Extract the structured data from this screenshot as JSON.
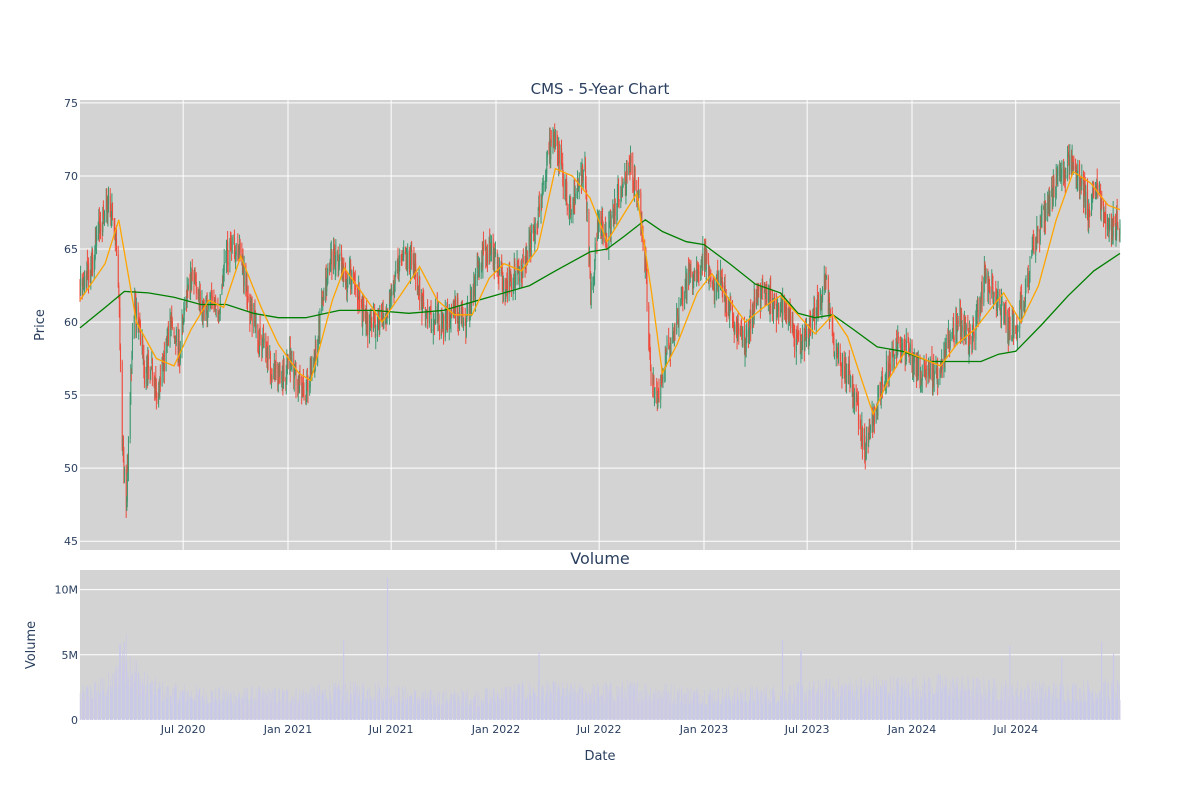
{
  "chart_data": {
    "type": "candlestick",
    "title": "CMS - 5-Year Chart",
    "subplot_titles": [
      "",
      "Volume"
    ],
    "xlabel": "Date",
    "price_panel": {
      "ylabel": "Price",
      "ylim": [
        44.4,
        75.2
      ],
      "yticks": [
        45,
        50,
        55,
        60,
        65,
        70,
        75
      ],
      "background": "#d3d3d3",
      "grid": true
    },
    "volume_panel": {
      "ylabel": "Volume",
      "ylim": [
        0,
        11500000
      ],
      "yticks": [
        0,
        5000000,
        10000000
      ],
      "ytick_labels": [
        "0",
        "5M",
        "10M"
      ],
      "background": "#d3d3d3",
      "bar_color": "#c8c8ea",
      "grid": true
    },
    "x_range": [
      "2020-01-02",
      "2024-12-31"
    ],
    "x_ticks": [
      {
        "date": "2020-07-01",
        "label": "Jul 2020"
      },
      {
        "date": "2021-01-01",
        "label": "Jan 2021"
      },
      {
        "date": "2021-07-01",
        "label": "Jul 2021"
      },
      {
        "date": "2022-01-01",
        "label": "Jan 2022"
      },
      {
        "date": "2022-07-01",
        "label": "Jul 2022"
      },
      {
        "date": "2023-01-01",
        "label": "Jan 2023"
      },
      {
        "date": "2023-07-01",
        "label": "Jul 2023"
      },
      {
        "date": "2024-01-01",
        "label": "Jan 2024"
      },
      {
        "date": "2024-07-01",
        "label": "Jul 2024"
      }
    ],
    "colors": {
      "increasing": "#3d9970",
      "decreasing": "#ef4b3c",
      "ma_short": "#ffa500",
      "ma_long": "#008000"
    },
    "close_path": [
      [
        "2020-01-02",
        62.5
      ],
      [
        "2020-01-20",
        63.5
      ],
      [
        "2020-02-05",
        66.5
      ],
      [
        "2020-02-20",
        68.2
      ],
      [
        "2020-03-03",
        66.8
      ],
      [
        "2020-03-10",
        62.0
      ],
      [
        "2020-03-16",
        52.0
      ],
      [
        "2020-03-23",
        47.5
      ],
      [
        "2020-03-30",
        55.0
      ],
      [
        "2020-04-06",
        61.0
      ],
      [
        "2020-04-15",
        60.0
      ],
      [
        "2020-04-25",
        56.0
      ],
      [
        "2020-05-05",
        57.5
      ],
      [
        "2020-05-14",
        55.0
      ],
      [
        "2020-05-25",
        56.5
      ],
      [
        "2020-06-08",
        60.0
      ],
      [
        "2020-06-25",
        58.0
      ],
      [
        "2020-07-06",
        61.5
      ],
      [
        "2020-07-20",
        63.5
      ],
      [
        "2020-08-03",
        60.5
      ],
      [
        "2020-08-17",
        61.5
      ],
      [
        "2020-08-31",
        60.5
      ],
      [
        "2020-09-14",
        64.5
      ],
      [
        "2020-09-28",
        65.5
      ],
      [
        "2020-10-12",
        64.0
      ],
      [
        "2020-10-26",
        61.0
      ],
      [
        "2020-11-09",
        59.0
      ],
      [
        "2020-11-23",
        58.0
      ],
      [
        "2020-12-07",
        56.5
      ],
      [
        "2020-12-21",
        56.0
      ],
      [
        "2021-01-04",
        57.5
      ],
      [
        "2021-01-18",
        55.5
      ],
      [
        "2021-02-01",
        55.0
      ],
      [
        "2021-02-15",
        57.0
      ],
      [
        "2021-03-01",
        61.0
      ],
      [
        "2021-03-15",
        64.0
      ],
      [
        "2021-03-29",
        64.5
      ],
      [
        "2021-04-12",
        62.5
      ],
      [
        "2021-04-26",
        63.5
      ],
      [
        "2021-05-10",
        60.5
      ],
      [
        "2021-05-24",
        59.5
      ],
      [
        "2021-06-07",
        60.0
      ],
      [
        "2021-06-21",
        60.5
      ],
      [
        "2021-07-05",
        62.5
      ],
      [
        "2021-07-19",
        64.0
      ],
      [
        "2021-08-02",
        64.5
      ],
      [
        "2021-08-16",
        63.0
      ],
      [
        "2021-08-30",
        60.0
      ],
      [
        "2021-09-13",
        60.5
      ],
      [
        "2021-09-27",
        59.5
      ],
      [
        "2021-10-11",
        60.5
      ],
      [
        "2021-10-25",
        61.0
      ],
      [
        "2021-11-08",
        59.5
      ],
      [
        "2021-11-22",
        62.0
      ],
      [
        "2021-12-06",
        64.5
      ],
      [
        "2021-12-20",
        65.0
      ],
      [
        "2022-01-03",
        64.0
      ],
      [
        "2022-01-17",
        62.5
      ],
      [
        "2022-01-31",
        63.0
      ],
      [
        "2022-02-14",
        63.5
      ],
      [
        "2022-02-28",
        65.5
      ],
      [
        "2022-03-14",
        67.0
      ],
      [
        "2022-03-28",
        70.0
      ],
      [
        "2022-04-11",
        73.0
      ],
      [
        "2022-04-25",
        71.0
      ],
      [
        "2022-05-09",
        67.5
      ],
      [
        "2022-05-23",
        69.0
      ],
      [
        "2022-06-06",
        71.0
      ],
      [
        "2022-06-16",
        62.0
      ],
      [
        "2022-06-30",
        67.0
      ],
      [
        "2022-07-14",
        65.5
      ],
      [
        "2022-07-28",
        68.0
      ],
      [
        "2022-08-11",
        69.0
      ],
      [
        "2022-08-25",
        70.5
      ],
      [
        "2022-09-08",
        68.5
      ],
      [
        "2022-09-20",
        64.0
      ],
      [
        "2022-09-30",
        56.0
      ],
      [
        "2022-10-10",
        54.5
      ],
      [
        "2022-10-24",
        57.5
      ],
      [
        "2022-11-07",
        59.0
      ],
      [
        "2022-11-21",
        61.5
      ],
      [
        "2022-12-05",
        63.0
      ],
      [
        "2022-12-19",
        63.5
      ],
      [
        "2023-01-03",
        64.5
      ],
      [
        "2023-01-17",
        62.0
      ],
      [
        "2023-01-31",
        63.0
      ],
      [
        "2023-02-14",
        60.5
      ],
      [
        "2023-02-28",
        59.5
      ],
      [
        "2023-03-14",
        58.5
      ],
      [
        "2023-03-28",
        61.0
      ],
      [
        "2023-04-11",
        62.0
      ],
      [
        "2023-04-25",
        61.5
      ],
      [
        "2023-05-09",
        61.0
      ],
      [
        "2023-05-23",
        61.5
      ],
      [
        "2023-06-06",
        59.0
      ],
      [
        "2023-06-20",
        58.5
      ],
      [
        "2023-07-05",
        59.5
      ],
      [
        "2023-07-19",
        61.0
      ],
      [
        "2023-08-02",
        63.0
      ],
      [
        "2023-08-16",
        58.5
      ],
      [
        "2023-08-30",
        57.0
      ],
      [
        "2023-09-13",
        56.5
      ],
      [
        "2023-09-27",
        54.0
      ],
      [
        "2023-10-11",
        51.0
      ],
      [
        "2023-10-25",
        53.5
      ],
      [
        "2023-11-08",
        55.5
      ],
      [
        "2023-11-22",
        57.0
      ],
      [
        "2023-12-06",
        58.5
      ],
      [
        "2023-12-20",
        58.0
      ],
      [
        "2024-01-03",
        57.5
      ],
      [
        "2024-01-17",
        56.5
      ],
      [
        "2024-01-31",
        57.0
      ],
      [
        "2024-02-14",
        56.0
      ],
      [
        "2024-02-28",
        58.0
      ],
      [
        "2024-03-13",
        59.5
      ],
      [
        "2024-03-27",
        60.0
      ],
      [
        "2024-04-10",
        58.5
      ],
      [
        "2024-04-24",
        60.5
      ],
      [
        "2024-05-08",
        63.0
      ],
      [
        "2024-05-22",
        62.0
      ],
      [
        "2024-06-05",
        61.0
      ],
      [
        "2024-06-19",
        59.5
      ],
      [
        "2024-07-03",
        60.0
      ],
      [
        "2024-07-17",
        61.5
      ],
      [
        "2024-07-31",
        65.0
      ],
      [
        "2024-08-14",
        66.5
      ],
      [
        "2024-08-28",
        68.0
      ],
      [
        "2024-09-11",
        69.5
      ],
      [
        "2024-09-25",
        70.5
      ],
      [
        "2024-10-09",
        71.0
      ],
      [
        "2024-10-23",
        69.5
      ],
      [
        "2024-11-06",
        67.5
      ],
      [
        "2024-11-20",
        69.0
      ],
      [
        "2024-12-04",
        67.0
      ],
      [
        "2024-12-18",
        66.5
      ],
      [
        "2024-12-31",
        66.8
      ]
    ],
    "ma_short": [
      [
        "2020-01-02",
        61.5
      ],
      [
        "2020-02-15",
        64.0
      ],
      [
        "2020-03-10",
        67.0
      ],
      [
        "2020-04-10",
        60.0
      ],
      [
        "2020-05-15",
        57.5
      ],
      [
        "2020-06-15",
        57.0
      ],
      [
        "2020-07-15",
        59.5
      ],
      [
        "2020-08-15",
        61.5
      ],
      [
        "2020-09-10",
        61.0
      ],
      [
        "2020-10-10",
        64.5
      ],
      [
        "2020-11-15",
        61.0
      ],
      [
        "2020-12-15",
        58.5
      ],
      [
        "2021-01-20",
        56.5
      ],
      [
        "2021-02-10",
        56.0
      ],
      [
        "2021-03-20",
        61.5
      ],
      [
        "2021-04-10",
        63.7
      ],
      [
        "2021-05-20",
        61.5
      ],
      [
        "2021-06-15",
        60.0
      ],
      [
        "2021-07-20",
        62.0
      ],
      [
        "2021-08-20",
        63.8
      ],
      [
        "2021-09-20",
        61.5
      ],
      [
        "2021-10-20",
        60.5
      ],
      [
        "2021-11-20",
        60.5
      ],
      [
        "2021-12-20",
        63.0
      ],
      [
        "2022-01-15",
        64.0
      ],
      [
        "2022-02-15",
        63.5
      ],
      [
        "2022-03-15",
        65.0
      ],
      [
        "2022-04-15",
        70.5
      ],
      [
        "2022-05-15",
        70.0
      ],
      [
        "2022-06-15",
        68.5
      ],
      [
        "2022-07-15",
        65.5
      ],
      [
        "2022-08-15",
        67.5
      ],
      [
        "2022-09-05",
        68.8
      ],
      [
        "2022-10-01",
        62.0
      ],
      [
        "2022-10-20",
        56.5
      ],
      [
        "2022-11-15",
        58.5
      ],
      [
        "2022-12-20",
        62.0
      ],
      [
        "2023-01-15",
        63.3
      ],
      [
        "2023-02-15",
        61.5
      ],
      [
        "2023-03-15",
        60.0
      ],
      [
        "2023-04-15",
        61.0
      ],
      [
        "2023-05-15",
        61.8
      ],
      [
        "2023-06-15",
        60.5
      ],
      [
        "2023-07-15",
        59.2
      ],
      [
        "2023-08-15",
        60.5
      ],
      [
        "2023-09-10",
        59.0
      ],
      [
        "2023-10-05",
        56.0
      ],
      [
        "2023-10-25",
        53.7
      ],
      [
        "2023-11-20",
        56.0
      ],
      [
        "2023-12-20",
        58.0
      ],
      [
        "2024-01-20",
        57.5
      ],
      [
        "2024-02-20",
        57.0
      ],
      [
        "2024-03-20",
        58.5
      ],
      [
        "2024-04-20",
        59.5
      ],
      [
        "2024-05-20",
        61.0
      ],
      [
        "2024-06-10",
        62.0
      ],
      [
        "2024-07-10",
        60.0
      ],
      [
        "2024-08-10",
        62.5
      ],
      [
        "2024-09-10",
        67.0
      ],
      [
        "2024-10-10",
        70.3
      ],
      [
        "2024-11-10",
        69.5
      ],
      [
        "2024-12-10",
        68.0
      ],
      [
        "2024-12-31",
        67.7
      ]
    ],
    "ma_long": [
      [
        "2020-01-02",
        59.6
      ],
      [
        "2020-02-15",
        61.0
      ],
      [
        "2020-03-20",
        62.1
      ],
      [
        "2020-05-01",
        62.0
      ],
      [
        "2020-06-15",
        61.7
      ],
      [
        "2020-08-01",
        61.2
      ],
      [
        "2020-09-15",
        61.2
      ],
      [
        "2020-11-01",
        60.6
      ],
      [
        "2020-12-15",
        60.3
      ],
      [
        "2021-02-01",
        60.3
      ],
      [
        "2021-04-01",
        60.8
      ],
      [
        "2021-06-01",
        60.8
      ],
      [
        "2021-08-01",
        60.6
      ],
      [
        "2021-10-01",
        60.8
      ],
      [
        "2021-12-01",
        61.5
      ],
      [
        "2022-01-15",
        62.0
      ],
      [
        "2022-03-01",
        62.5
      ],
      [
        "2022-04-15",
        63.5
      ],
      [
        "2022-06-15",
        64.8
      ],
      [
        "2022-07-15",
        65.0
      ],
      [
        "2022-08-15",
        65.9
      ],
      [
        "2022-09-20",
        67.0
      ],
      [
        "2022-10-20",
        66.2
      ],
      [
        "2022-12-01",
        65.5
      ],
      [
        "2023-01-01",
        65.3
      ],
      [
        "2023-02-15",
        64.0
      ],
      [
        "2023-04-01",
        62.6
      ],
      [
        "2023-05-15",
        62.0
      ],
      [
        "2023-06-15",
        60.6
      ],
      [
        "2023-07-15",
        60.3
      ],
      [
        "2023-08-15",
        60.5
      ],
      [
        "2023-09-20",
        59.5
      ],
      [
        "2023-11-01",
        58.3
      ],
      [
        "2023-12-15",
        58.0
      ],
      [
        "2024-02-01",
        57.3
      ],
      [
        "2024-03-15",
        57.3
      ],
      [
        "2024-05-01",
        57.3
      ],
      [
        "2024-06-01",
        57.8
      ],
      [
        "2024-07-01",
        58.0
      ],
      [
        "2024-08-15",
        59.8
      ],
      [
        "2024-10-01",
        61.8
      ],
      [
        "2024-11-15",
        63.5
      ],
      [
        "2024-12-31",
        64.7
      ]
    ],
    "volume_profile": [
      [
        "2020-01-02",
        2000000
      ],
      [
        "2020-03-01",
        3000000
      ],
      [
        "2020-03-20",
        5500000
      ],
      [
        "2020-04-20",
        3000000
      ],
      [
        "2020-06-01",
        2200000
      ],
      [
        "2020-09-01",
        2000000
      ],
      [
        "2021-01-01",
        2000000
      ],
      [
        "2021-06-01",
        2400000
      ],
      [
        "2021-09-01",
        1800000
      ],
      [
        "2021-12-01",
        1900000
      ],
      [
        "2022-03-01",
        2400000
      ],
      [
        "2022-06-01",
        2200000
      ],
      [
        "2022-09-01",
        2400000
      ],
      [
        "2022-12-01",
        2100000
      ],
      [
        "2023-03-01",
        2000000
      ],
      [
        "2023-06-01",
        2200000
      ],
      [
        "2023-09-01",
        2600000
      ],
      [
        "2023-12-01",
        2700000
      ],
      [
        "2024-03-01",
        2800000
      ],
      [
        "2024-06-01",
        2500000
      ],
      [
        "2024-09-01",
        2300000
      ],
      [
        "2024-12-31",
        2500000
      ]
    ],
    "volume_spikes": [
      [
        "2020-03-12",
        5800000
      ],
      [
        "2020-03-20",
        6000000
      ],
      [
        "2021-04-09",
        6100000
      ],
      [
        "2021-06-25",
        10900000
      ],
      [
        "2022-03-18",
        5200000
      ],
      [
        "2023-05-19",
        6100000
      ],
      [
        "2023-06-20",
        5300000
      ],
      [
        "2024-06-21",
        5700000
      ],
      [
        "2024-09-20",
        4800000
      ],
      [
        "2024-11-29",
        6000000
      ],
      [
        "2024-12-20",
        5100000
      ]
    ]
  }
}
